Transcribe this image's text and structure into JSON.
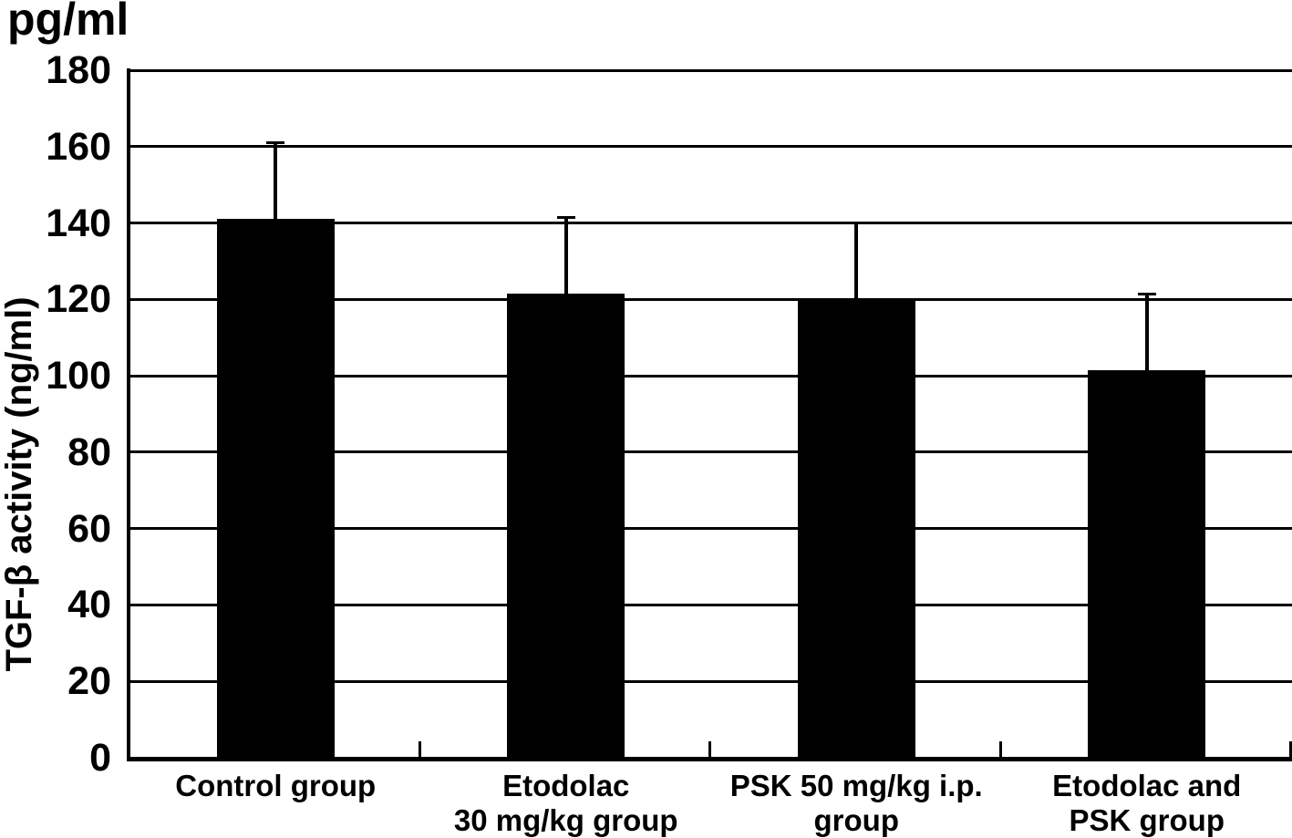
{
  "chart_data": {
    "type": "bar",
    "unit_label": "pg/ml",
    "ylabel": "TGF-β activity (ng/ml)",
    "categories": [
      "Control group",
      "Etodolac\n30 mg/kg group",
      "PSK 50 mg/kg i.p.\ngroup",
      "Etodolac and\nPSK group"
    ],
    "values": [
      141,
      121.5,
      120,
      101.5
    ],
    "errors_upper": [
      20,
      20,
      20,
      20
    ],
    "yticks": [
      0,
      20,
      40,
      60,
      80,
      100,
      120,
      140,
      160,
      180
    ],
    "ylim": [
      0,
      180
    ],
    "grid": true,
    "legend": "none",
    "bar_color": "#000000",
    "background_color": "#ffffff"
  }
}
